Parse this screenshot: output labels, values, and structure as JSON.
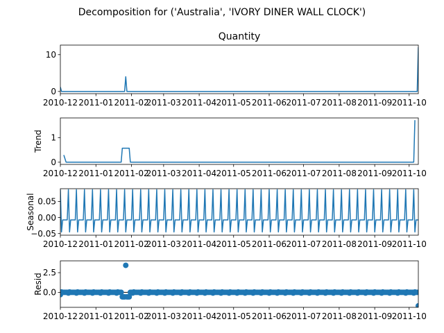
{
  "suptitle": "Decomposition for ('Australia', 'IVORY DINER WALL CLOCK')",
  "colors": {
    "line": "#1f77b4",
    "resid_zero": "#000000"
  },
  "chart_data": [
    {
      "type": "line",
      "title": "Quantity",
      "ylabel": "",
      "x_range": [
        "2010-12-01",
        "2011-10-09"
      ],
      "ylim": [
        -0.6,
        12.6
      ],
      "yticks": [
        {
          "v": 0,
          "label": "0"
        },
        {
          "v": 10,
          "label": "10"
        }
      ],
      "xticks": [
        "2010-12",
        "2011-01",
        "2011-02",
        "2011-03",
        "2011-04",
        "2011-05",
        "2011-06",
        "2011-07",
        "2011-08",
        "2011-09",
        "2011-10"
      ],
      "series": [
        {
          "x": [
            "2010-12-01",
            "2010-12-02",
            "2011-01-26",
            "2011-01-27",
            "2011-01-28",
            "2011-10-07",
            "2011-10-08",
            "2011-10-09"
          ],
          "y": [
            1.2,
            0,
            0,
            4,
            0,
            0,
            0,
            12
          ]
        }
      ]
    },
    {
      "type": "line",
      "title": "",
      "ylabel": "Trend",
      "x_range": [
        "2010-12-01",
        "2011-10-09"
      ],
      "ylim": [
        -0.09,
        1.8
      ],
      "yticks": [
        {
          "v": 0,
          "label": "0"
        },
        {
          "v": 1,
          "label": "1"
        }
      ],
      "xticks": [
        "2010-12",
        "2011-01",
        "2011-02",
        "2011-03",
        "2011-04",
        "2011-05",
        "2011-06",
        "2011-07",
        "2011-08",
        "2011-09",
        "2011-10"
      ],
      "series": [
        {
          "x": [
            "2010-12-04",
            "2010-12-06",
            "2011-01-23",
            "2011-01-24",
            "2011-01-30",
            "2011-01-31",
            "2011-10-05",
            "2011-10-06"
          ],
          "y": [
            0.29,
            0,
            0,
            0.57,
            0.57,
            0,
            0,
            1.71
          ]
        }
      ]
    },
    {
      "type": "line",
      "title": "",
      "ylabel": "Seasonal",
      "x_range": [
        "2010-12-01",
        "2011-10-09"
      ],
      "ylim": [
        -0.055,
        0.09
      ],
      "yticks": [
        {
          "v": 0.05,
          "label": "0.05"
        },
        {
          "v": 0.0,
          "label": "0.00"
        },
        {
          "v": -0.05,
          "label": "−0.05"
        }
      ],
      "xticks": [
        "2010-12",
        "2011-01",
        "2011-02",
        "2011-03",
        "2011-04",
        "2011-05",
        "2011-06",
        "2011-07",
        "2011-08",
        "2011-09",
        "2011-10"
      ],
      "seasonal_pattern": {
        "start": "2010-12-01",
        "end": "2011-10-09",
        "period_days": 7,
        "weekly_values": [
          0.087,
          -0.045,
          -0.0075,
          -0.0075,
          -0.0075,
          -0.0075,
          -0.0075
        ]
      }
    },
    {
      "type": "scatter",
      "title": "",
      "ylabel": "Resid",
      "x_range": [
        "2010-12-01",
        "2011-10-09"
      ],
      "ylim": [
        -1.9,
        4.0
      ],
      "yticks": [
        {
          "v": 2.5,
          "label": "2.5"
        },
        {
          "v": 0.0,
          "label": "0.0"
        }
      ],
      "xticks": [
        "2010-12",
        "2011-01",
        "2011-02",
        "2011-03",
        "2011-04",
        "2011-05",
        "2011-06",
        "2011-07",
        "2011-08",
        "2011-09",
        "2011-10"
      ],
      "residual_baseline": {
        "start": "2010-12-01",
        "end": "2011-10-09",
        "period_days": 7,
        "weekly_values": [
          -0.087,
          0.045,
          0.0075,
          0.0075,
          0.0075,
          0.0075,
          0.0075
        ]
      },
      "outliers": [
        {
          "x": "2010-12-01",
          "y": -0.29
        },
        {
          "x": "2011-01-24",
          "y": -0.57
        },
        {
          "x": "2011-01-25",
          "y": -0.57
        },
        {
          "x": "2011-01-26",
          "y": -0.57
        },
        {
          "x": "2011-01-27",
          "y": 3.43
        },
        {
          "x": "2011-01-28",
          "y": -0.57
        },
        {
          "x": "2011-01-29",
          "y": -0.57
        },
        {
          "x": "2011-01-30",
          "y": -0.57
        },
        {
          "x": "2011-10-09",
          "y": -1.71
        }
      ]
    }
  ]
}
